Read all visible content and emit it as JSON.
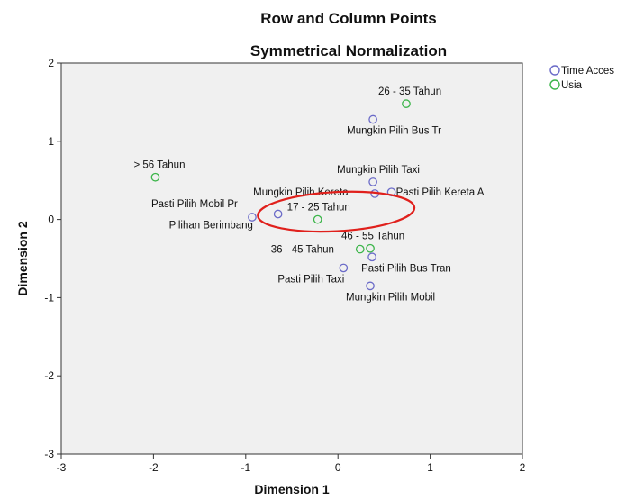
{
  "chart_data": {
    "type": "scatter",
    "title": "Row and Column Points",
    "subtitle": "Symmetrical Normalization",
    "xlabel": "Dimension 1",
    "ylabel": "Dimension 2",
    "xlim": [
      -3,
      2
    ],
    "ylim": [
      -3,
      2
    ],
    "x_ticks": [
      "-3",
      "-2",
      "-1",
      "0",
      "1",
      "2"
    ],
    "y_ticks": [
      "2",
      "1",
      "0",
      "-1",
      "-2",
      "-3"
    ],
    "x_tick_values": [
      -3,
      -2,
      -1,
      0,
      1,
      2
    ],
    "y_tick_values": [
      2,
      1,
      0,
      -1,
      -2,
      -3
    ],
    "grid": false,
    "legend_position": "top-right",
    "series": [
      {
        "name": "Time Acces",
        "color": "#6b6bc8",
        "points": [
          {
            "label": "Mungkin Pilih Bus Tr",
            "x": 0.38,
            "y": 1.28
          },
          {
            "label": "Mungkin Pilih Taxi",
            "x": 0.38,
            "y": 0.48
          },
          {
            "label": "Mungkin Pilih Kereta",
            "x": 0.4,
            "y": 0.33
          },
          {
            "label": "Pasti Pilih Kereta A",
            "x": 0.58,
            "y": 0.35
          },
          {
            "label": "Pasti Pilih Mobil Pr",
            "x": -0.93,
            "y": 0.03
          },
          {
            "label": "Pilihan Berimbang",
            "x": -0.65,
            "y": 0.07
          },
          {
            "label": "Pasti Pilih Bus Tran",
            "x": 0.37,
            "y": -0.48
          },
          {
            "label": "Pasti Pilih Taxi",
            "x": 0.06,
            "y": -0.62
          },
          {
            "label": "Mungkin Pilih Mobil",
            "x": 0.35,
            "y": -0.85
          }
        ]
      },
      {
        "name": "Usia",
        "color": "#3cb54a",
        "points": [
          {
            "label": "26 - 35  Tahun",
            "x": 0.74,
            "y": 1.48
          },
          {
            "label": "> 56 Tahun",
            "x": -1.98,
            "y": 0.54
          },
          {
            "label": "17 - 25 Tahun",
            "x": -0.22,
            "y": 0.0
          },
          {
            "label": "46 - 55  Tahun",
            "x": 0.35,
            "y": -0.37
          },
          {
            "label": "36 - 45  Tahun",
            "x": 0.24,
            "y": -0.38
          }
        ]
      }
    ],
    "annotation": {
      "type": "ellipse",
      "color": "#e0201c",
      "cx": -0.02,
      "cy": 0.1,
      "rx": 0.85,
      "ry": 0.25
    }
  }
}
